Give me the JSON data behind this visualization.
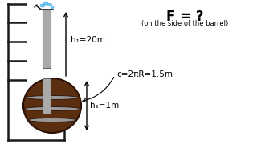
{
  "bg_color": "#ffffff",
  "title_text": "F = ?",
  "subtitle_text": "(on the side of the barrel)",
  "h1_label": "h₁=20m",
  "h2_label": "h₂=1m",
  "circ_label": "c=2πR=1.5m",
  "wall_color": "#1a1a1a",
  "pipe_color_face": "#aaaaaa",
  "pipe_color_edge": "#666666",
  "barrel_body_color": "#5C2E10",
  "barrel_band_color": "#999999",
  "barrel_edge_color": "#2a1005",
  "water_color": "#66ccff",
  "arrow_color": "#000000",
  "label_fontsize": 7.5,
  "title_fontsize": 12,
  "subtitle_fontsize": 6.0
}
